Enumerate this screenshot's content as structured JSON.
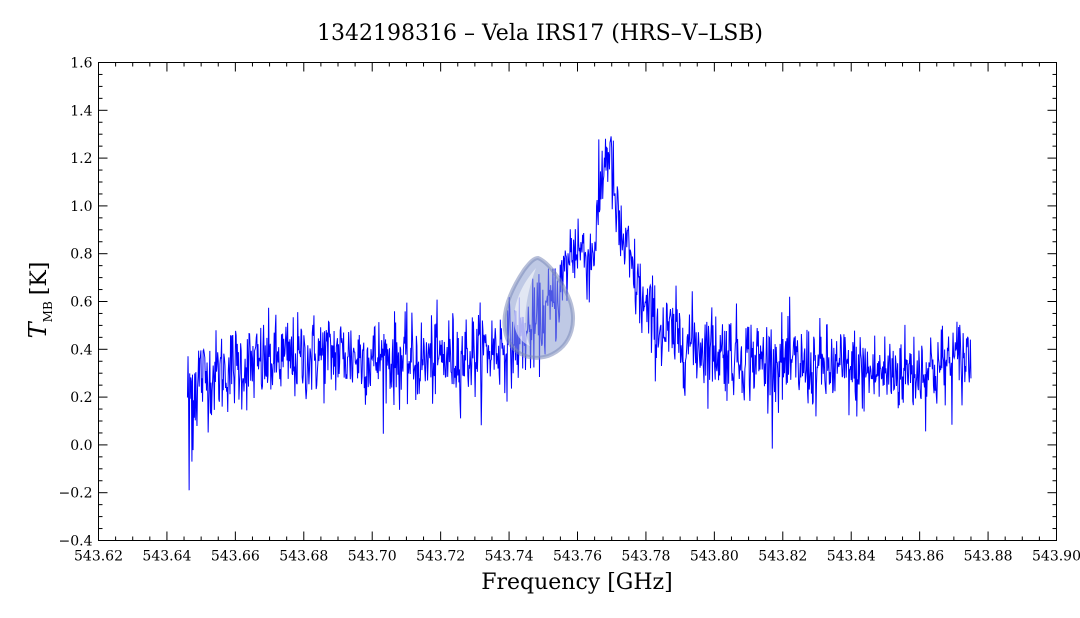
{
  "chart_data": {
    "type": "line",
    "title": "1342198316 – Vela IRS17 (HRS–V–LSB)",
    "xlabel": "Frequency [GHz]",
    "ylabel_main": "T",
    "ylabel_sub": "MB",
    "ylabel_unit": "[K]",
    "xlim": [
      543.62,
      543.9
    ],
    "ylim": [
      -0.4,
      1.6
    ],
    "x_ticks": [
      "543.62",
      "543.64",
      "543.66",
      "543.68",
      "543.70",
      "543.72",
      "543.74",
      "543.76",
      "543.78",
      "543.80",
      "543.82",
      "543.84",
      "543.86",
      "543.88",
      "543.90"
    ],
    "y_ticks": [
      "−0.4",
      "−0.2",
      "0.0",
      "0.2",
      "0.4",
      "0.6",
      "0.8",
      "1.0",
      "1.2",
      "1.4",
      "1.6"
    ],
    "series": [
      {
        "color": "#0000ff",
        "x": [
          543.646,
          543.65,
          543.655,
          543.66,
          543.665,
          543.67,
          543.675,
          543.68,
          543.685,
          543.69,
          543.695,
          543.7,
          543.705,
          543.71,
          543.715,
          543.72,
          543.725,
          543.73,
          543.735,
          543.74,
          543.745,
          543.748,
          543.751,
          543.754,
          543.756,
          543.758,
          543.76,
          543.762,
          543.764,
          543.765,
          543.766,
          543.767,
          543.768,
          543.769,
          543.77,
          543.771,
          543.772,
          543.774,
          543.776,
          543.778,
          543.78,
          543.783,
          543.786,
          543.79,
          543.795,
          543.8,
          543.805,
          543.81,
          543.815,
          543.82,
          543.825,
          543.83,
          543.835,
          543.84,
          543.845,
          543.85,
          543.855,
          543.86,
          543.865,
          543.87,
          543.875
        ],
        "y": [
          0.24,
          0.28,
          0.3,
          0.33,
          0.33,
          0.35,
          0.36,
          0.36,
          0.38,
          0.38,
          0.37,
          0.36,
          0.36,
          0.35,
          0.35,
          0.36,
          0.37,
          0.38,
          0.4,
          0.42,
          0.46,
          0.5,
          0.55,
          0.62,
          0.7,
          0.8,
          0.84,
          0.8,
          0.78,
          0.85,
          0.95,
          1.1,
          1.2,
          1.24,
          1.16,
          1.0,
          0.9,
          0.82,
          0.72,
          0.64,
          0.55,
          0.5,
          0.46,
          0.44,
          0.42,
          0.4,
          0.38,
          0.37,
          0.35,
          0.34,
          0.33,
          0.32,
          0.32,
          0.31,
          0.3,
          0.3,
          0.31,
          0.31,
          0.32,
          0.35,
          0.37
        ],
        "noise_sigma": 0.09
      }
    ]
  }
}
